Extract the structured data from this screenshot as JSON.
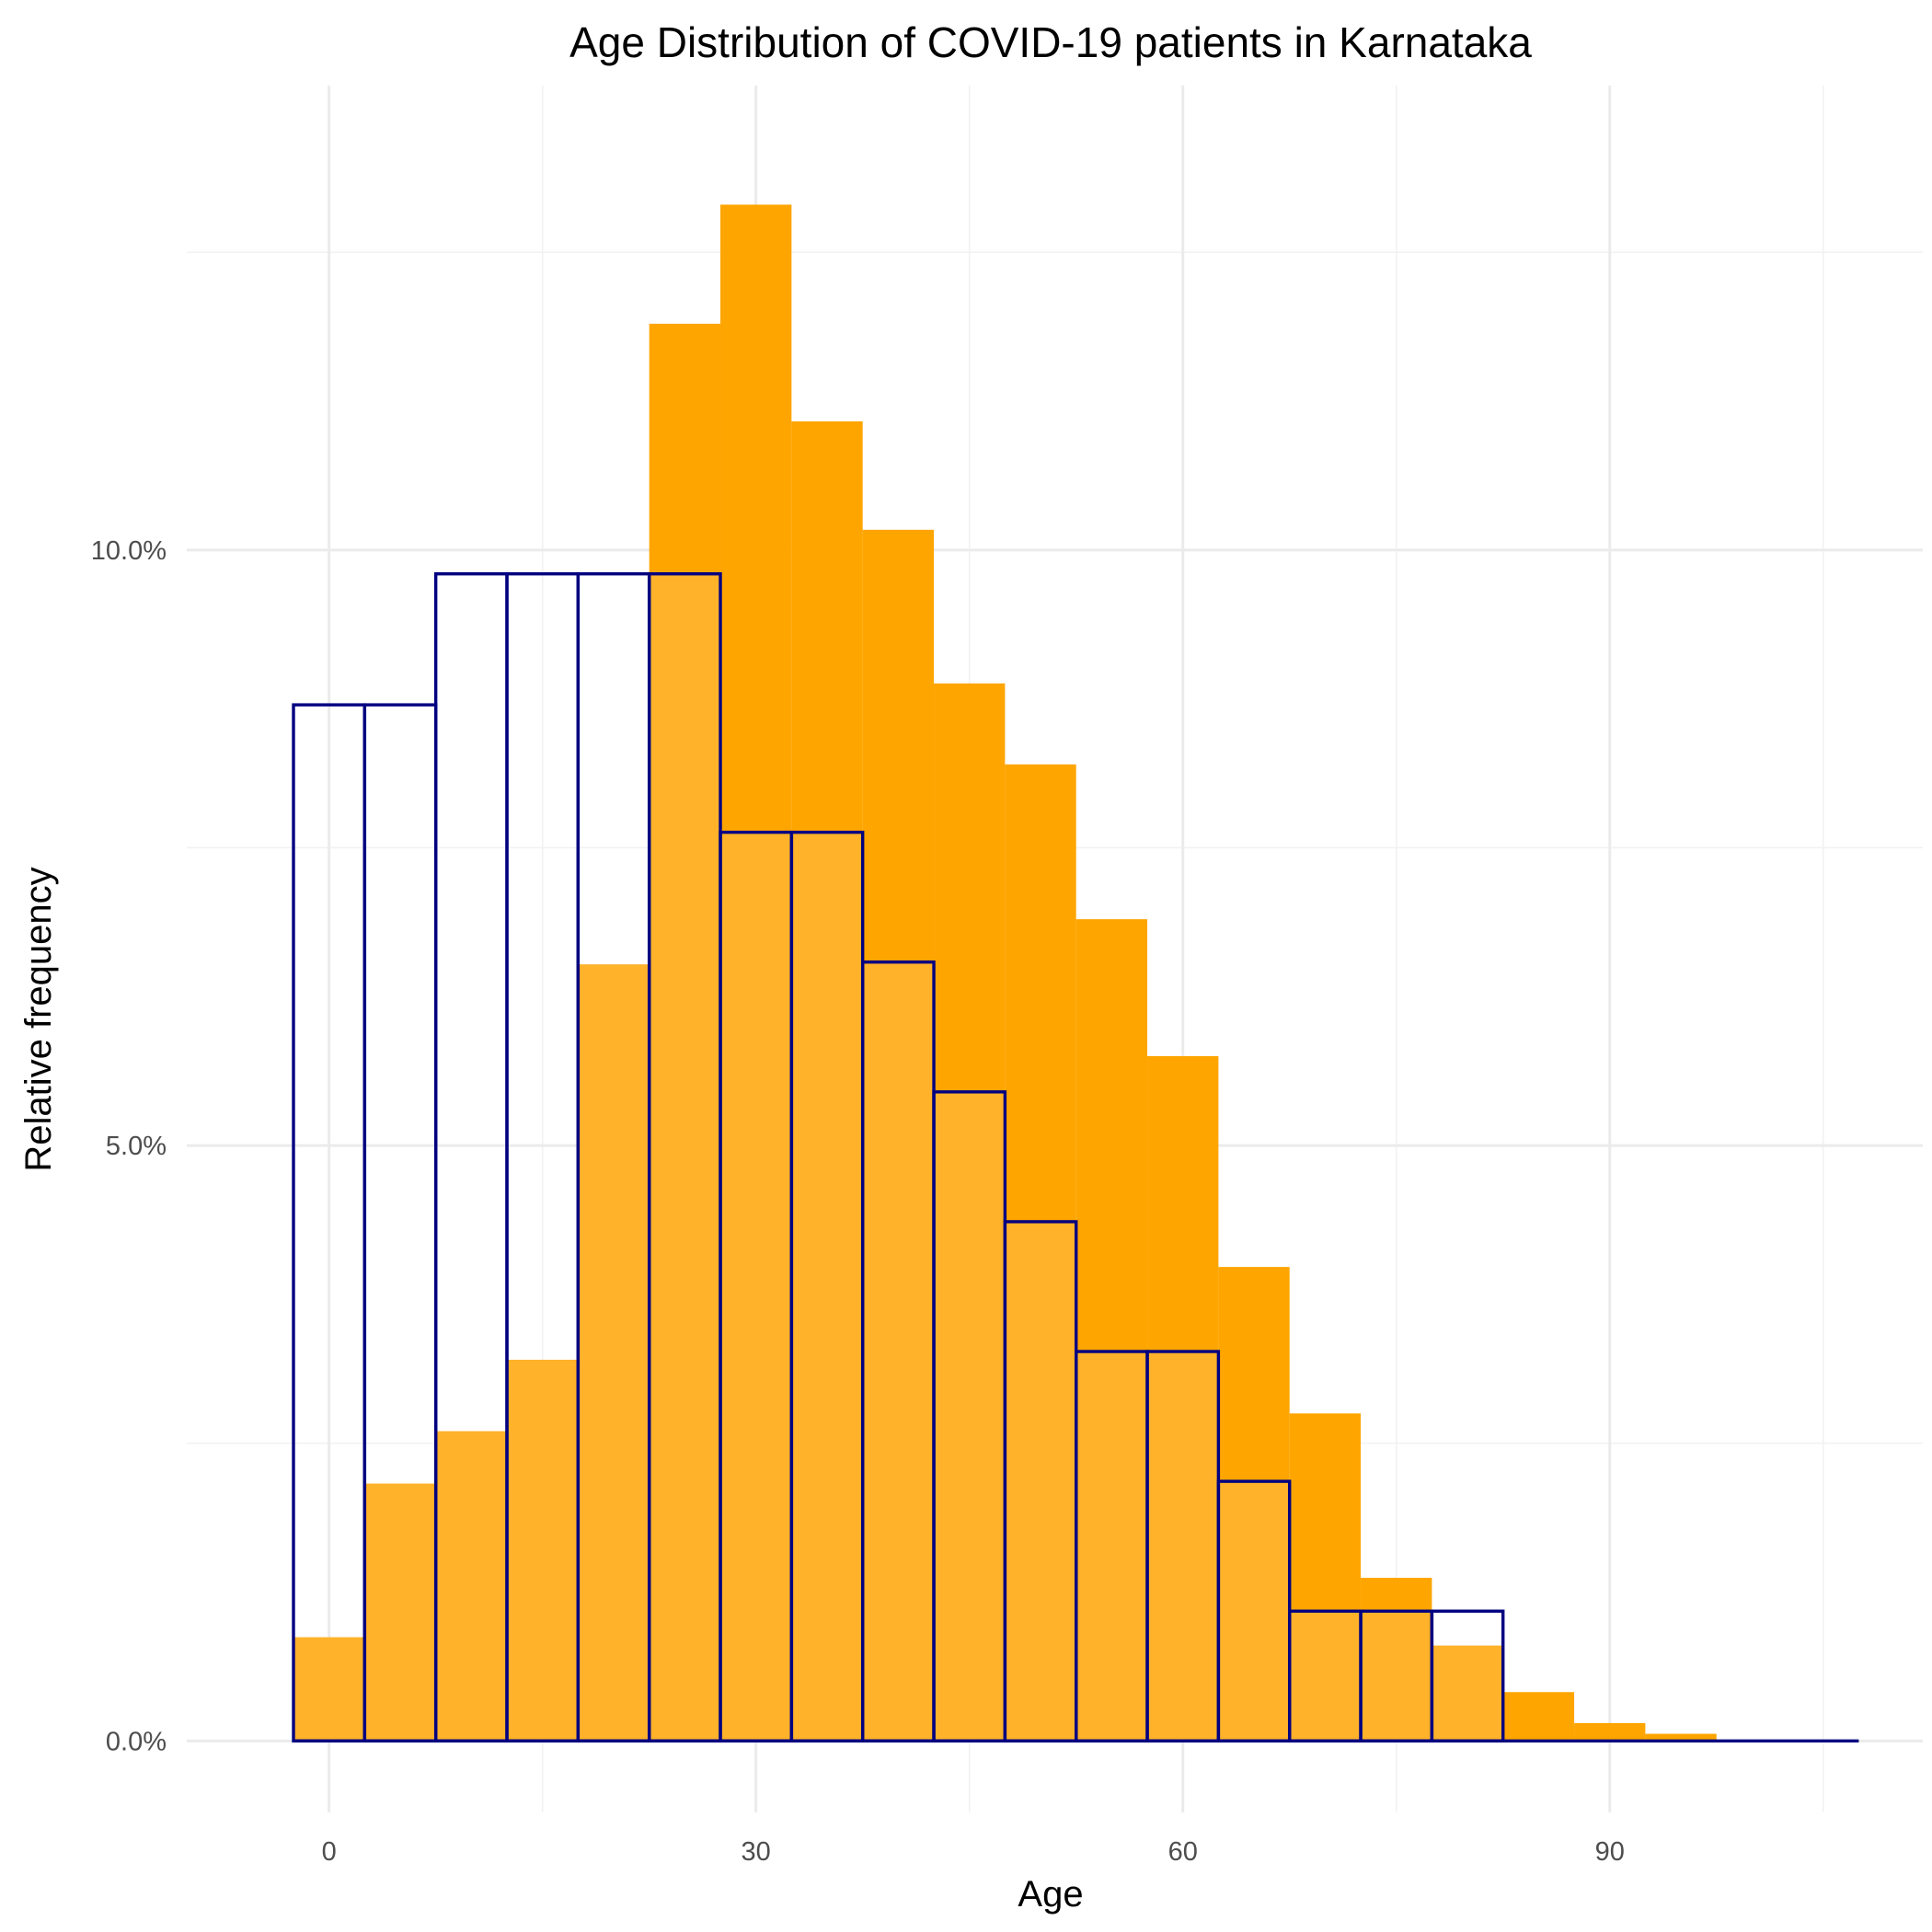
{
  "chart_data": {
    "type": "histogram",
    "title": "Age Distribution of COVID-19 patients in Karnataka",
    "xlabel": "Age",
    "ylabel": "Relative frequency",
    "xlim": [
      -10,
      112
    ],
    "ylim": [
      -0.6,
      13.9
    ],
    "x_ticks": [
      {
        "value": 0,
        "label": "0"
      },
      {
        "value": 30,
        "label": "30"
      },
      {
        "value": 60,
        "label": "60"
      },
      {
        "value": 90,
        "label": "90"
      }
    ],
    "y_ticks": [
      {
        "value": 0,
        "label": "0.0%"
      },
      {
        "value": 5,
        "label": "5.0%"
      },
      {
        "value": 10,
        "label": "10.0%"
      }
    ],
    "grid": true,
    "bin_width": 5,
    "series": [
      {
        "style": "filled",
        "color": "#FFA500",
        "overlap_color": "#FFB22A",
        "bin_starts": [
          -2.5,
          2.5,
          7.5,
          12.5,
          17.5,
          22.5,
          27.5,
          32.5,
          37.5,
          42.5,
          47.5,
          52.5,
          57.5,
          62.5,
          67.5,
          72.5,
          77.5,
          82.5,
          87.5,
          92.5,
          97.5,
          102.5
        ],
        "values": [
          0.87,
          2.16,
          2.6,
          3.2,
          6.52,
          11.9,
          12.9,
          11.08,
          10.17,
          8.88,
          8.2,
          6.9,
          5.75,
          3.98,
          2.75,
          1.37,
          0.8,
          0.41,
          0.15,
          0.06,
          0.01,
          0.01
        ]
      },
      {
        "style": "outline",
        "color": "#000080",
        "bin_starts": [
          -2.5,
          2.5,
          7.5,
          12.5,
          17.5,
          22.5,
          27.5,
          32.5,
          37.5,
          42.5,
          47.5,
          52.5,
          57.5,
          62.5,
          67.5,
          72.5,
          77.5,
          82.5,
          87.5,
          92.5,
          97.5,
          102.5
        ],
        "values": [
          8.7,
          8.7,
          9.8,
          9.8,
          9.8,
          9.8,
          7.63,
          7.63,
          6.54,
          5.45,
          4.36,
          3.27,
          3.27,
          2.18,
          1.09,
          1.09,
          1.09,
          0,
          0,
          0,
          0,
          0
        ]
      }
    ]
  }
}
